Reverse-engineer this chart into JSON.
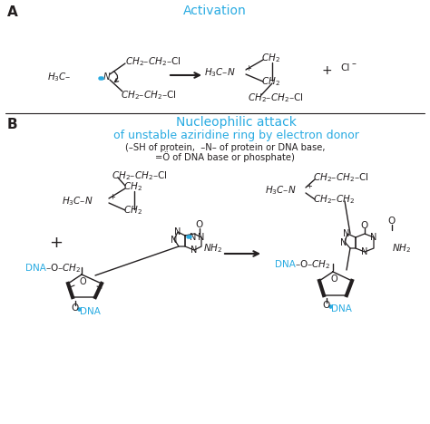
{
  "bg_color": "#ffffff",
  "cyan_color": "#29abe2",
  "black_color": "#231f20",
  "title_A": "Activation",
  "label_A": "A",
  "title_B_line1": "Nucleophilic attack",
  "title_B_line2": "of unstable aziridine ring by electron donor",
  "subtitle_B": "(–SH of protein,  –N– of protein or DNA base,\n=Ö of DNA base or phosphate)",
  "label_B": "B"
}
